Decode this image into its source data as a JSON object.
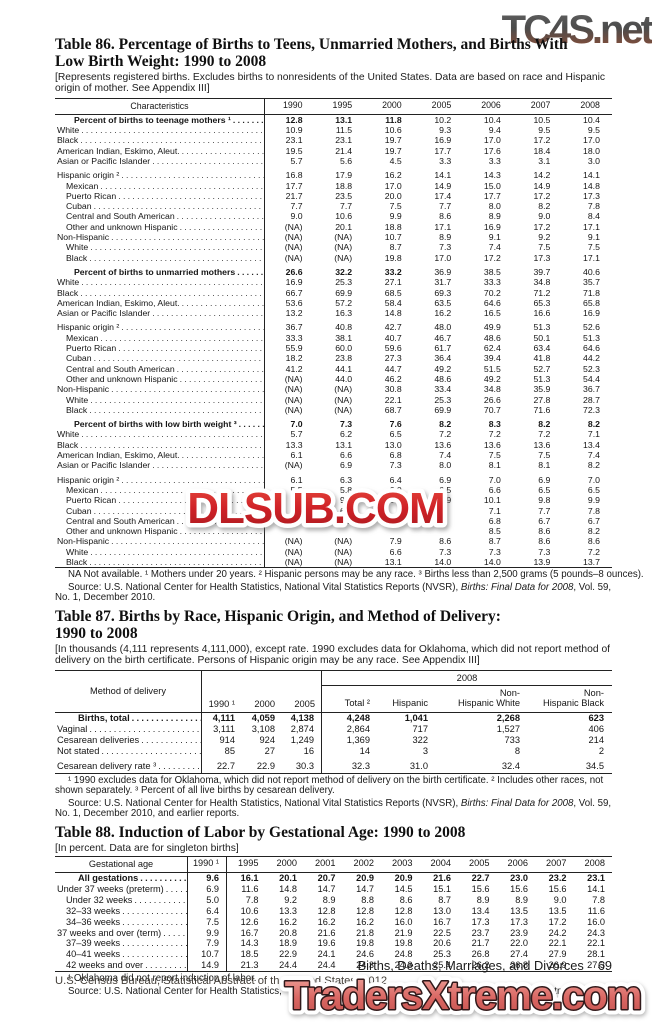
{
  "watermarks": {
    "top_right": "TC4S.net",
    "center": "DLSUB.COM",
    "bottom": "TradersXtreme.com",
    "center_color": "#cf2127",
    "bottom_fill": "#d96662"
  },
  "footer": {
    "running_head": "Births, Deaths, Marriages, and Divorces",
    "page_number": "69",
    "imprint": "U.S. Census Bureau, Statistical Abstract of the United States: 2012"
  },
  "table86": {
    "title": [
      "Table 86. Percentage of Births to Teens, Unmarried Mothers, and Births With",
      "Low Birth Weight: 1990 to 2008"
    ],
    "note": "[Represents registered births. Excludes births to nonresidents of the United States. Data are based on race and Hispanic origin of mother. See Appendix III]",
    "stub_header": "Characteristics",
    "columns": [
      "1990",
      "1995",
      "2000",
      "2005",
      "2006",
      "2007",
      "2008"
    ],
    "rows": [
      {
        "l": "Percent of births to teenage mothers ¹",
        "t": 1,
        "b": 3,
        "v": [
          "12.8",
          "13.1",
          "11.8",
          "10.2",
          "10.4",
          "10.5",
          "10.4"
        ]
      },
      {
        "l": "White",
        "i": 1,
        "v": [
          "10.9",
          "11.5",
          "10.6",
          "9.3",
          "9.4",
          "9.5",
          "9.5"
        ]
      },
      {
        "l": "Black",
        "i": 1,
        "v": [
          "23.1",
          "23.1",
          "19.7",
          "16.9",
          "17.0",
          "17.2",
          "17.0"
        ]
      },
      {
        "l": "American Indian, Eskimo, Aleut.",
        "i": 1,
        "v": [
          "19.5",
          "21.4",
          "19.7",
          "17.7",
          "17.6",
          "18.4",
          "18.0"
        ]
      },
      {
        "l": "Asian or Pacific Islander",
        "i": 1,
        "v": [
          "5.7",
          "5.6",
          "4.5",
          "3.3",
          "3.3",
          "3.1",
          "3.0"
        ]
      },
      {
        "l": "Hispanic origin ²",
        "i": 1,
        "g": 1,
        "v": [
          "16.8",
          "17.9",
          "16.2",
          "14.1",
          "14.3",
          "14.2",
          "14.1"
        ]
      },
      {
        "l": "Mexican",
        "i": 2,
        "v": [
          "17.7",
          "18.8",
          "17.0",
          "14.9",
          "15.0",
          "14.9",
          "14.8"
        ]
      },
      {
        "l": "Puerto Rican",
        "i": 2,
        "v": [
          "21.7",
          "23.5",
          "20.0",
          "17.4",
          "17.7",
          "17.2",
          "17.3"
        ]
      },
      {
        "l": "Cuban",
        "i": 2,
        "v": [
          "7.7",
          "7.7",
          "7.5",
          "7.7",
          "8.0",
          "8.2",
          "7.8"
        ]
      },
      {
        "l": "Central and South American",
        "i": 2,
        "v": [
          "9.0",
          "10.6",
          "9.9",
          "8.6",
          "8.9",
          "9.0",
          "8.4"
        ]
      },
      {
        "l": "Other and unknown Hispanic",
        "i": 2,
        "v": [
          "(NA)",
          "20.1",
          "18.8",
          "17.1",
          "16.9",
          "17.2",
          "17.1"
        ]
      },
      {
        "l": "Non-Hispanic",
        "i": 1,
        "v": [
          "(NA)",
          "(NA)",
          "10.7",
          "8.9",
          "9.1",
          "9.2",
          "9.1"
        ]
      },
      {
        "l": "White",
        "i": 2,
        "v": [
          "(NA)",
          "(NA)",
          "8.7",
          "7.3",
          "7.4",
          "7.5",
          "7.5"
        ]
      },
      {
        "l": "Black",
        "i": 2,
        "v": [
          "(NA)",
          "(NA)",
          "19.8",
          "17.0",
          "17.2",
          "17.3",
          "17.1"
        ]
      },
      {
        "l": "Percent of births to unmarried mothers",
        "t": 1,
        "g": 1,
        "b": 3,
        "v": [
          "26.6",
          "32.2",
          "33.2",
          "36.9",
          "38.5",
          "39.7",
          "40.6"
        ]
      },
      {
        "l": "White",
        "i": 1,
        "v": [
          "16.9",
          "25.3",
          "27.1",
          "31.7",
          "33.3",
          "34.8",
          "35.7"
        ]
      },
      {
        "l": "Black",
        "i": 1,
        "v": [
          "66.7",
          "69.9",
          "68.5",
          "69.3",
          "70.2",
          "71.2",
          "71.8"
        ]
      },
      {
        "l": "American Indian, Eskimo, Aleut.",
        "i": 1,
        "v": [
          "53.6",
          "57.2",
          "58.4",
          "63.5",
          "64.6",
          "65.3",
          "65.8"
        ]
      },
      {
        "l": "Asian or Pacific Islander",
        "i": 1,
        "v": [
          "13.2",
          "16.3",
          "14.8",
          "16.2",
          "16.5",
          "16.6",
          "16.9"
        ]
      },
      {
        "l": "Hispanic origin ²",
        "i": 1,
        "g": 1,
        "v": [
          "36.7",
          "40.8",
          "42.7",
          "48.0",
          "49.9",
          "51.3",
          "52.6"
        ]
      },
      {
        "l": "Mexican",
        "i": 2,
        "v": [
          "33.3",
          "38.1",
          "40.7",
          "46.7",
          "48.6",
          "50.1",
          "51.3"
        ]
      },
      {
        "l": "Puerto Rican",
        "i": 2,
        "v": [
          "55.9",
          "60.0",
          "59.6",
          "61.7",
          "62.4",
          "63.4",
          "64.6"
        ]
      },
      {
        "l": "Cuban",
        "i": 2,
        "v": [
          "18.2",
          "23.8",
          "27.3",
          "36.4",
          "39.4",
          "41.8",
          "44.2"
        ]
      },
      {
        "l": "Central and South American",
        "i": 2,
        "v": [
          "41.2",
          "44.1",
          "44.7",
          "49.2",
          "51.5",
          "52.7",
          "52.3"
        ]
      },
      {
        "l": "Other and unknown Hispanic",
        "i": 2,
        "v": [
          "(NA)",
          "44.0",
          "46.2",
          "48.6",
          "49.2",
          "51.3",
          "54.4"
        ]
      },
      {
        "l": "Non-Hispanic",
        "i": 1,
        "v": [
          "(NA)",
          "(NA)",
          "30.8",
          "33.4",
          "34.8",
          "35.9",
          "36.7"
        ]
      },
      {
        "l": "White",
        "i": 2,
        "v": [
          "(NA)",
          "(NA)",
          "22.1",
          "25.3",
          "26.6",
          "27.8",
          "28.7"
        ]
      },
      {
        "l": "Black",
        "i": 2,
        "v": [
          "(NA)",
          "(NA)",
          "68.7",
          "69.9",
          "70.7",
          "71.6",
          "72.3"
        ]
      },
      {
        "l": "Percent of births with low birth weight ³",
        "t": 1,
        "g": 1,
        "b": 7,
        "v": [
          "7.0",
          "7.3",
          "7.6",
          "8.2",
          "8.3",
          "8.2",
          "8.2"
        ]
      },
      {
        "l": "White",
        "i": 1,
        "v": [
          "5.7",
          "6.2",
          "6.5",
          "7.2",
          "7.2",
          "7.2",
          "7.1"
        ]
      },
      {
        "l": "Black",
        "i": 1,
        "v": [
          "13.3",
          "13.1",
          "13.0",
          "13.6",
          "13.6",
          "13.6",
          "13.4"
        ]
      },
      {
        "l": "American Indian, Eskimo, Aleut.",
        "i": 1,
        "v": [
          "6.1",
          "6.6",
          "6.8",
          "7.4",
          "7.5",
          "7.5",
          "7.4"
        ]
      },
      {
        "l": "Asian or Pacific Islander",
        "i": 1,
        "v": [
          "(NA)",
          "6.9",
          "7.3",
          "8.0",
          "8.1",
          "8.1",
          "8.2"
        ]
      },
      {
        "l": "Hispanic origin ²",
        "i": 1,
        "g": 1,
        "v": [
          "6.1",
          "6.3",
          "6.4",
          "6.9",
          "7.0",
          "6.9",
          "7.0"
        ]
      },
      {
        "l": "Mexican",
        "i": 2,
        "v": [
          "5.5",
          "5.8",
          "6.0",
          "6.5",
          "6.6",
          "6.5",
          "6.5"
        ]
      },
      {
        "l": "Puerto Rican",
        "i": 2,
        "v": [
          "9.0",
          "9.4",
          "9.3",
          "9.9",
          "10.1",
          "9.8",
          "9.9"
        ]
      },
      {
        "l": "Cuban",
        "i": 2,
        "v": [
          "",
          "6.5",
          "",
          "",
          "7.1",
          "7.7",
          "7.8"
        ]
      },
      {
        "l": "Central and South American",
        "i": 2,
        "v": [
          "",
          "6.2",
          "",
          "",
          "6.8",
          "6.7",
          "6.7"
        ]
      },
      {
        "l": "Other and unknown Hispanic",
        "i": 2,
        "v": [
          "",
          "",
          "",
          "",
          "8.5",
          "8.6",
          "8.2"
        ]
      },
      {
        "l": "Non-Hispanic",
        "i": 1,
        "v": [
          "(NA)",
          "(NA)",
          "7.9",
          "8.6",
          "8.7",
          "8.6",
          "8.6"
        ]
      },
      {
        "l": "White",
        "i": 2,
        "v": [
          "(NA)",
          "(NA)",
          "6.6",
          "7.3",
          "7.3",
          "7.3",
          "7.2"
        ]
      },
      {
        "l": "Black",
        "i": 2,
        "v": [
          "(NA)",
          "(NA)",
          "13.1",
          "14.0",
          "14.0",
          "13.9",
          "13.7"
        ]
      }
    ],
    "footnote": "NA Not available. ¹ Mothers under 20 years. ² Hispanic persons may be any race. ³ Births less than 2,500 grams (5 pounds–8 ounces).",
    "source_pre": "Source: U.S. National Center for Health Statistics, National Vital Statistics Reports (NVSR), ",
    "source_italic": "Births: Final Data for 2008",
    "source_post": ", Vol. 59, No. 1, December 2010."
  },
  "table87": {
    "title": [
      "Table 87. Births by Race, Hispanic Origin, and Method of Delivery:",
      "1990 to 2008"
    ],
    "note": "[In thousands (4,111 represents 4,111,000), except rate. 1990 excludes data for Oklahoma, which did not report method of delivery on the birth certificate. Persons of Hispanic origin may be any race. See Appendix III]",
    "stub_header": "Method of delivery",
    "group_year": "2008",
    "col_1990": "1990 ¹",
    "col_2000": "2000",
    "col_2005": "2005",
    "col_total": "Total ²",
    "col_hispanic": "Hispanic",
    "col_nhw_top": "Non-",
    "col_nhw_bot": "Hispanic White",
    "col_nhb_top": "Non-",
    "col_nhb_bot": "Hispanic Black",
    "rows": [
      {
        "l": "Births, total",
        "t": 1,
        "b": 7,
        "v": [
          "4,111",
          "4,059",
          "4,138",
          "4,248",
          "1,041",
          "2,268",
          "623"
        ]
      },
      {
        "l": "Vaginal",
        "i": 1,
        "v": [
          "3,111",
          "3,108",
          "2,874",
          "2,864",
          "717",
          "1,527",
          "406"
        ]
      },
      {
        "l": "Cesarean deliveries",
        "i": 1,
        "v": [
          "914",
          "924",
          "1,249",
          "1,369",
          "322",
          "733",
          "214"
        ]
      },
      {
        "l": "Not stated",
        "i": 1,
        "v": [
          "85",
          "27",
          "16",
          "14",
          "3",
          "8",
          "2"
        ]
      },
      {
        "l": "Cesarean delivery rate ³",
        "i": 1,
        "g": 1,
        "v": [
          "22.7",
          "22.9",
          "30.3",
          "32.3",
          "31.0",
          "32.4",
          "34.5"
        ]
      }
    ],
    "footnote": "¹ 1990 excludes data for Oklahoma, which did not report method of delivery on the birth certificate. ² Includes other races, not shown separately. ³ Percent of all live births by cesarean delivery.",
    "source_pre": "Source: U.S. National Center for Health Statistics, National Vital Statistics Reports (NVSR), ",
    "source_italic": "Births: Final Data for 2008",
    "source_post": ", Vol. 59, No. 1, December 2010, and earlier reports."
  },
  "table88": {
    "title": "Table 88. Induction of Labor by Gestational Age: 1990 to 2008",
    "note": "[In percent. Data are for singleton births]",
    "stub_header": "Gestational age",
    "columns": [
      "1990 ¹",
      "1995",
      "2000",
      "2001",
      "2002",
      "2003",
      "2004",
      "2005",
      "2006",
      "2007",
      "2008"
    ],
    "rows": [
      {
        "l": "All gestations",
        "t": 1,
        "b": 11,
        "v": [
          "9.6",
          "16.1",
          "20.1",
          "20.7",
          "20.9",
          "20.9",
          "21.6",
          "22.7",
          "23.0",
          "23.2",
          "23.1"
        ]
      },
      {
        "l": "Under 37 weeks (preterm)",
        "i": 1,
        "v": [
          "6.9",
          "11.6",
          "14.8",
          "14.7",
          "14.7",
          "14.5",
          "15.1",
          "15.6",
          "15.6",
          "15.6",
          "14.1"
        ]
      },
      {
        "l": "Under 32 weeks",
        "i": 2,
        "v": [
          "5.0",
          "7.8",
          "9.2",
          "8.9",
          "8.8",
          "8.6",
          "8.7",
          "8.9",
          "8.9",
          "9.0",
          "7.8"
        ]
      },
      {
        "l": "32–33 weeks",
        "i": 2,
        "v": [
          "6.4",
          "10.6",
          "13.3",
          "12.8",
          "12.8",
          "12.8",
          "13.0",
          "13.4",
          "13.5",
          "13.5",
          "11.6"
        ]
      },
      {
        "l": "34–36 weeks",
        "i": 2,
        "v": [
          "7.5",
          "12.6",
          "16.2",
          "16.2",
          "16.2",
          "16.0",
          "16.7",
          "17.3",
          "17.3",
          "17.2",
          "16.0"
        ]
      },
      {
        "l": "37 weeks and over (term)",
        "i": 1,
        "v": [
          "9.9",
          "16.7",
          "20.8",
          "21.6",
          "21.8",
          "21.9",
          "22.5",
          "23.7",
          "23.9",
          "24.2",
          "24.3"
        ]
      },
      {
        "l": "37–39 weeks",
        "i": 2,
        "v": [
          "7.9",
          "14.3",
          "18.9",
          "19.6",
          "19.8",
          "19.8",
          "20.6",
          "21.7",
          "22.0",
          "22.1",
          "22.1"
        ]
      },
      {
        "l": "40–41 weeks",
        "i": 2,
        "v": [
          "10.7",
          "18.5",
          "22.9",
          "24.1",
          "24.6",
          "24.8",
          "25.3",
          "26.8",
          "27.4",
          "27.9",
          "28.1"
        ]
      },
      {
        "l": "42 weeks and over",
        "i": 2,
        "v": [
          "14.9",
          "21.3",
          "24.4",
          "24.4",
          "24.3",
          "24.3",
          "25.4",
          "26.2",
          "26.8",
          "26.9",
          "27.3"
        ]
      }
    ],
    "footnote": "¹ Oklahoma did not report induction of labor.",
    "source": "Source: U.S. National Center for Health Statistics, “VitalStats,” August 2010, <http://www.cdc.gov/nchs/vitalstats.htm>."
  }
}
